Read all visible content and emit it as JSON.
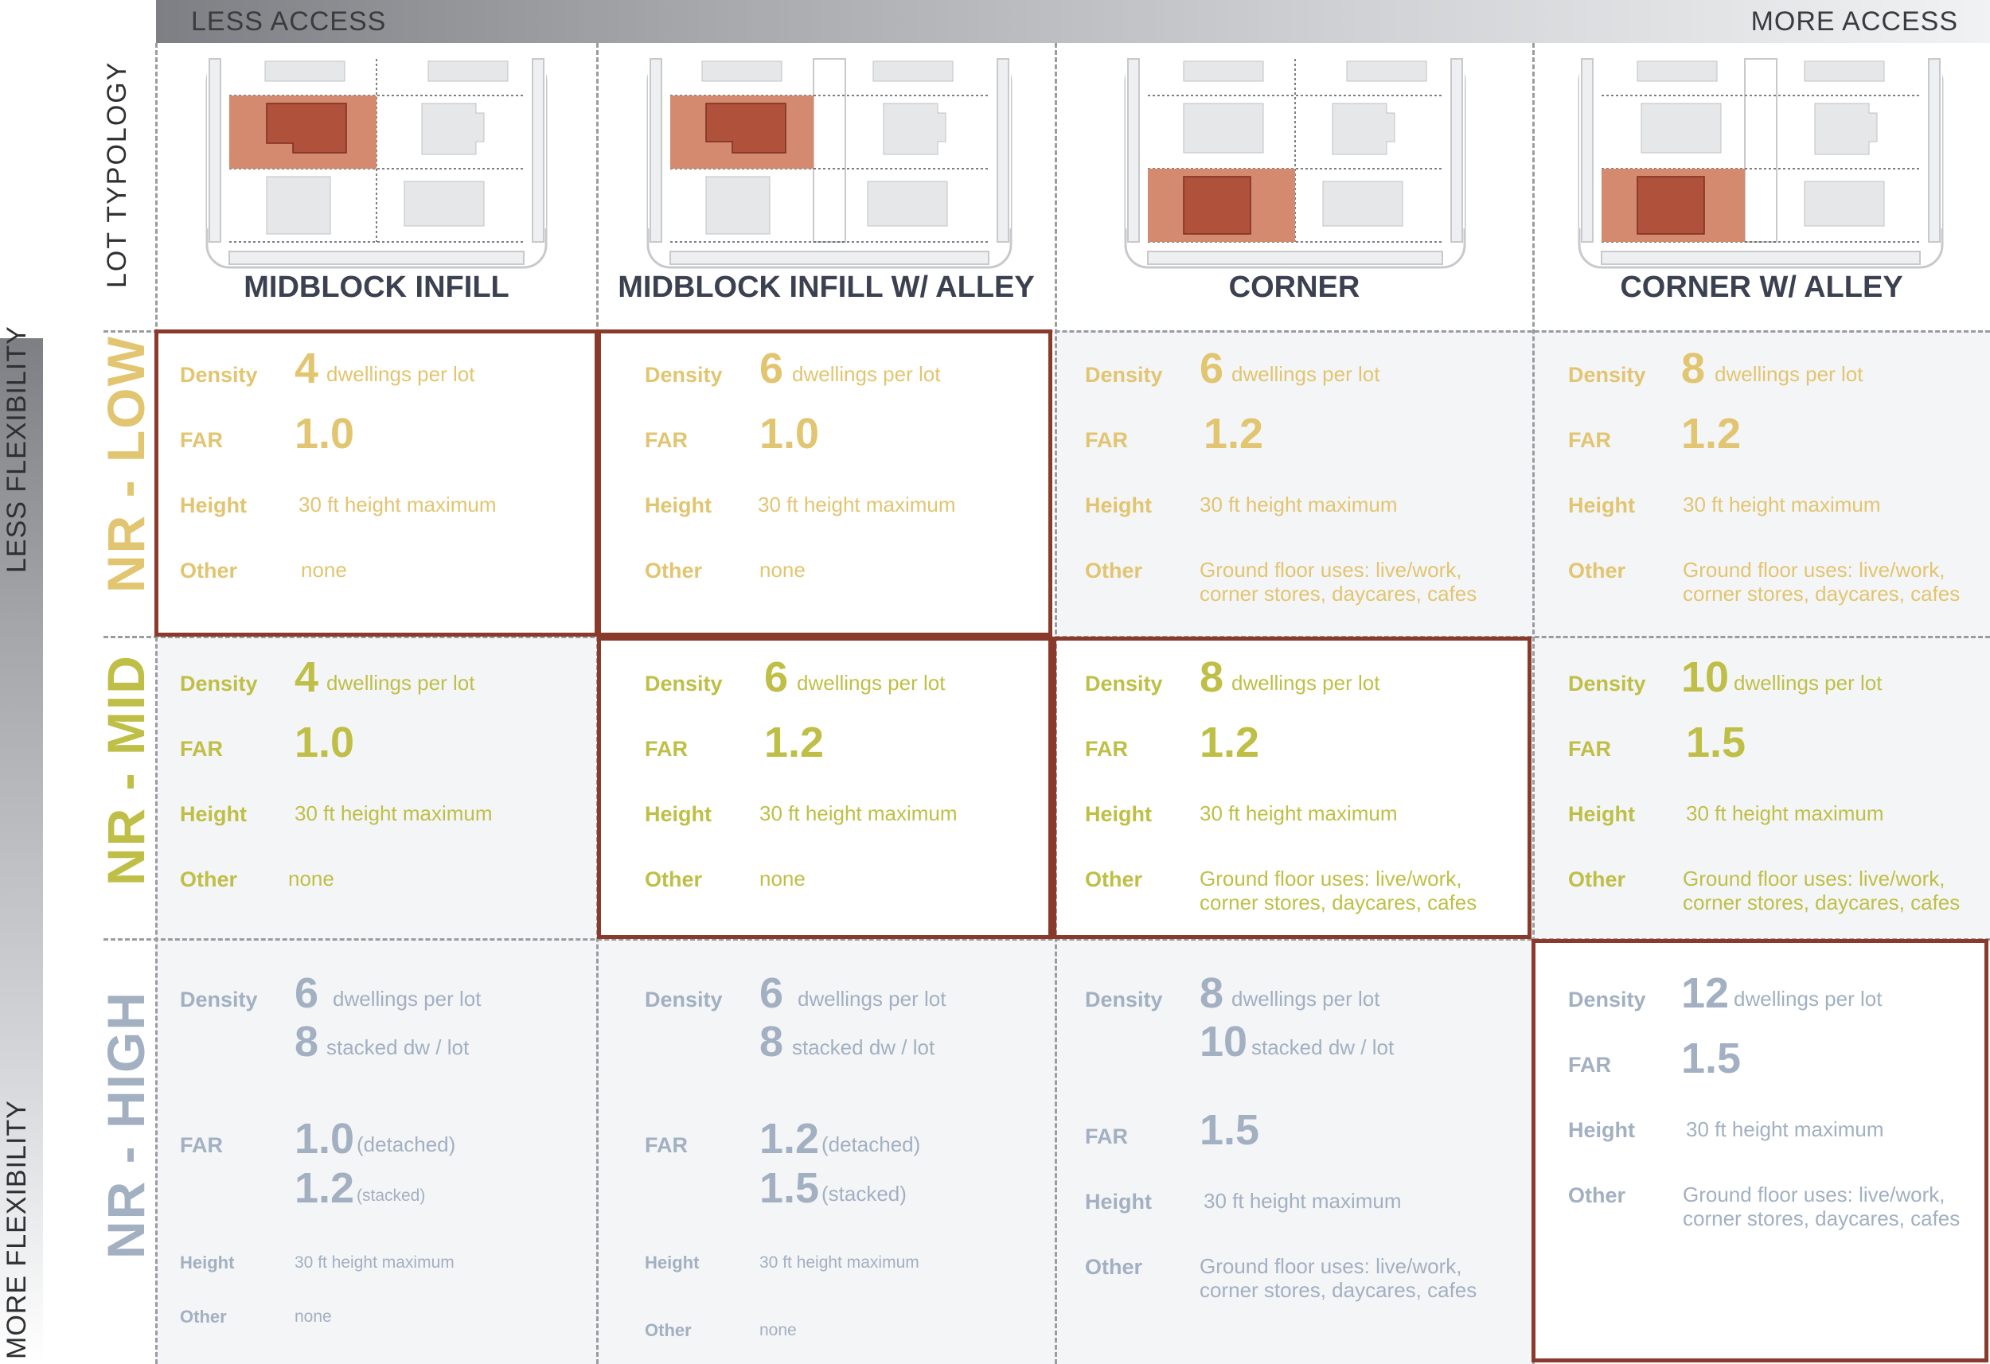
{
  "access": {
    "less": "LESS ACCESS",
    "more": "MORE ACCESS"
  },
  "flexibility": {
    "less": "LESS FLEXIBILITY",
    "more": "MORE FLEXIBILITY"
  },
  "lot_typology_label": "LOT TYPOLOGY",
  "columns": [
    {
      "title": "MIDBLOCK INFILL"
    },
    {
      "title": "MIDBLOCK INFILL W/ ALLEY"
    },
    {
      "title": "CORNER"
    },
    {
      "title": "CORNER W/ ALLEY"
    }
  ],
  "rows": [
    {
      "label": "NR - LOW",
      "color": "#e2c570"
    },
    {
      "label": "NR - MID",
      "color": "#bfbf47"
    },
    {
      "label": "NR - HIGH",
      "color": "#a2b0c2"
    }
  ],
  "labels": {
    "density": "Density",
    "far": "FAR",
    "height": "Height",
    "other": "Other"
  },
  "units": {
    "dwellings": "dwellings per lot",
    "stacked": "stacked dw / lot",
    "detached": "(detached)",
    "stacked_far": "(stacked)"
  },
  "common": {
    "height_max": "30 ft height maximum",
    "none": "none",
    "ground_floor_1": "Ground floor uses:  live/work,",
    "ground_floor_2": "corner stores, daycares, cafes"
  },
  "cells": {
    "low": [
      {
        "density": "4",
        "far": "1.0"
      },
      {
        "density": "6",
        "far": "1.0"
      },
      {
        "density": "6",
        "far": "1.2"
      },
      {
        "density": "8",
        "far": "1.2"
      }
    ],
    "mid": [
      {
        "density": "4",
        "far": "1.0"
      },
      {
        "density": "6",
        "far": "1.2"
      },
      {
        "density": "8",
        "far": "1.2"
      },
      {
        "density": "10",
        "far": "1.5"
      }
    ],
    "high": [
      {
        "density": "6",
        "density2": "8",
        "far": "1.0",
        "far2": "1.2"
      },
      {
        "density": "6",
        "density2": "8",
        "far": "1.2",
        "far2": "1.5"
      },
      {
        "density": "8",
        "density2": "10",
        "far": "1.5"
      },
      {
        "density": "12",
        "far": "1.5"
      }
    ]
  },
  "colors": {
    "highlight_border": "#8a3a2a",
    "lot_fill": "#d48a6e",
    "building_fill": "#b0513b",
    "cell_background": "#f4f5f7"
  }
}
